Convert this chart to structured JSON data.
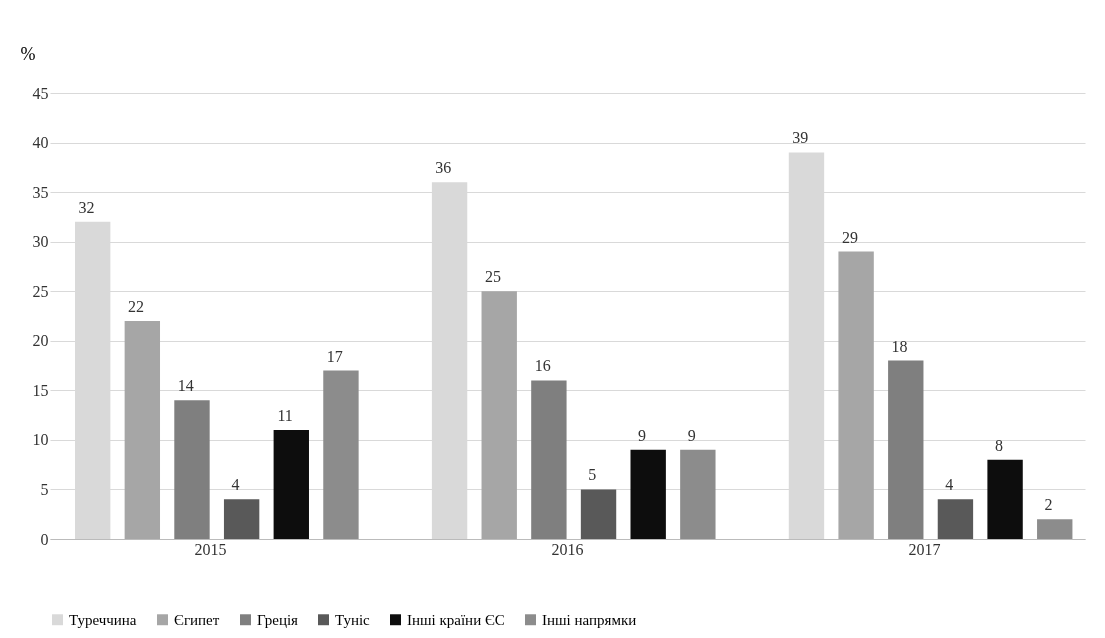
{
  "chart_data": {
    "type": "bar",
    "ylabel": "%",
    "categories": [
      "2015",
      "2016",
      "2017"
    ],
    "series": [
      {
        "name": "Туреччина",
        "color": "#d9d9d9",
        "values": [
          32,
          36,
          39
        ]
      },
      {
        "name": "Єгипет",
        "color": "#a6a6a6",
        "values": [
          22,
          25,
          29
        ]
      },
      {
        "name": "Греція",
        "color": "#7f7f7f",
        "values": [
          14,
          16,
          18
        ]
      },
      {
        "name": "Туніс",
        "color": "#595959",
        "values": [
          4,
          5,
          4
        ]
      },
      {
        "name": "Інші країни ЄС",
        "color": "#0d0d0d",
        "values": [
          11,
          9,
          8
        ]
      },
      {
        "name": "Інші напрямки",
        "color": "#8c8c8c",
        "values": [
          17,
          9,
          2
        ]
      }
    ],
    "ylim": [
      0,
      45
    ],
    "yticks": [
      0,
      5,
      10,
      15,
      20,
      25,
      30,
      35,
      40,
      45
    ],
    "grid": "y",
    "legend": "bottom",
    "data_labels": true
  }
}
